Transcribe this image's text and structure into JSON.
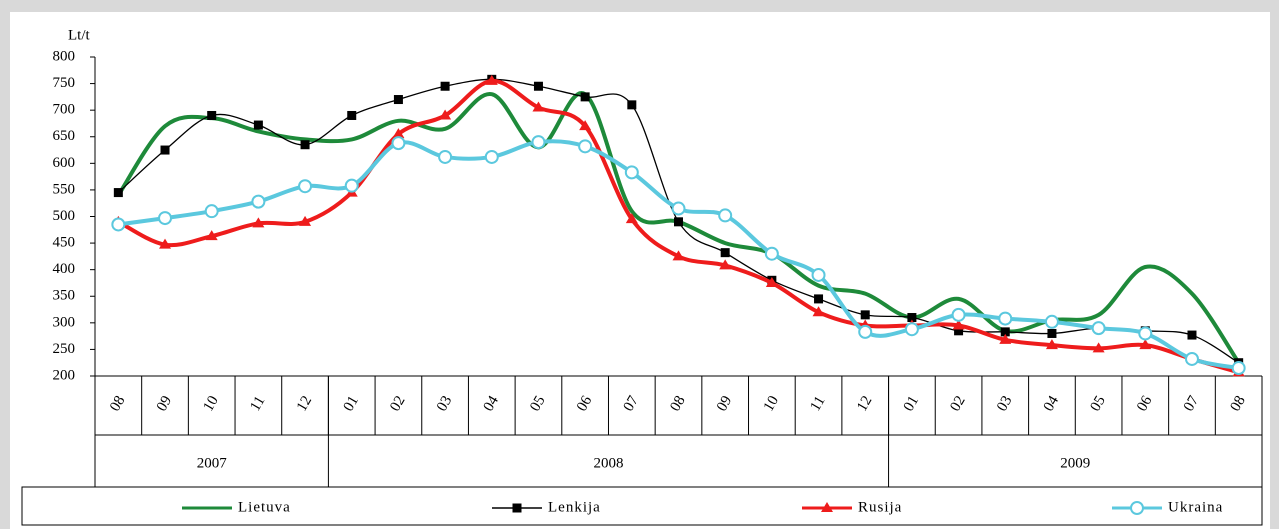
{
  "chart_data": {
    "type": "line",
    "y_label": "Lt/t",
    "groups": [
      {
        "label": "2007",
        "categories": [
          "08",
          "09",
          "10",
          "11",
          "12"
        ]
      },
      {
        "label": "2008",
        "categories": [
          "01",
          "02",
          "03",
          "04",
          "05",
          "06",
          "07",
          "08",
          "09",
          "10",
          "11",
          "12"
        ]
      },
      {
        "label": "2009",
        "categories": [
          "01",
          "02",
          "03",
          "04",
          "05",
          "06",
          "07",
          "08"
        ]
      }
    ],
    "ylim": [
      200,
      800
    ],
    "yticks": [
      200,
      250,
      300,
      350,
      400,
      450,
      500,
      550,
      600,
      650,
      700,
      750,
      800
    ],
    "grid": false,
    "legend": "bottom",
    "series": [
      {
        "name": "Lietuva",
        "color": "#1e8a3a",
        "marker": "none",
        "width": 4,
        "values": [
          540,
          670,
          685,
          660,
          645,
          645,
          680,
          665,
          730,
          630,
          730,
          510,
          490,
          450,
          430,
          370,
          355,
          310,
          345,
          285,
          305,
          315,
          405,
          355,
          225
        ]
      },
      {
        "name": "Lenkija",
        "color": "#000000",
        "marker": "square",
        "width": 1.3,
        "values": [
          545,
          625,
          690,
          672,
          635,
          690,
          720,
          745,
          758,
          745,
          725,
          710,
          490,
          432,
          380,
          345,
          315,
          310,
          285,
          283,
          280,
          290,
          285,
          277,
          225
        ]
      },
      {
        "name": "Rusija",
        "color": "#ee1c1c",
        "marker": "triangle",
        "width": 4,
        "values": [
          490,
          447,
          463,
          487,
          490,
          545,
          655,
          690,
          755,
          705,
          670,
          495,
          425,
          408,
          375,
          320,
          295,
          295,
          295,
          268,
          258,
          252,
          258,
          232,
          207
        ]
      },
      {
        "name": "Ukraina",
        "color": "#5bc8de",
        "marker": "circle",
        "width": 4,
        "values": [
          485,
          497,
          510,
          528,
          557,
          558,
          638,
          612,
          612,
          640,
          632,
          583,
          515,
          502,
          430,
          390,
          283,
          288,
          315,
          308,
          302,
          290,
          280,
          232,
          215
        ]
      }
    ]
  }
}
